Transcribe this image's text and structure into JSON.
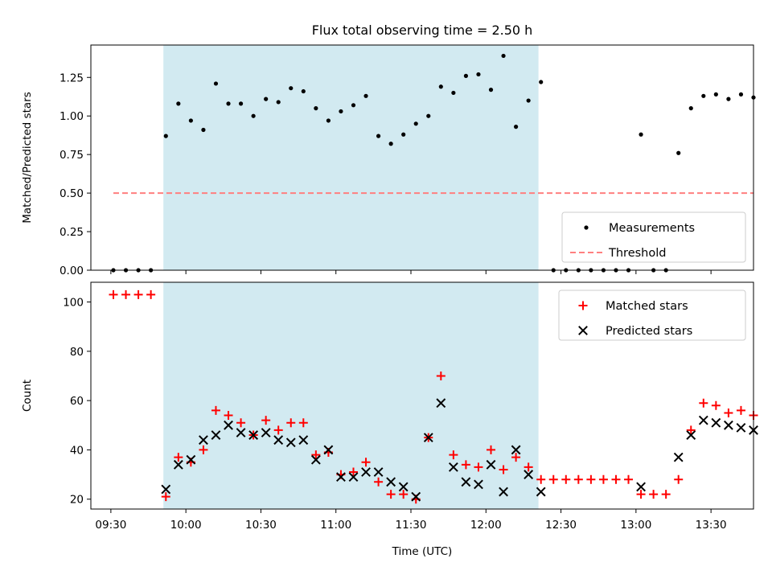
{
  "colors": {
    "shade": "#add8e6",
    "threshold": "#ff7f7f",
    "matched": "#ff0000",
    "predicted": "#000000",
    "measurement": "#000000"
  },
  "chart_data": [
    {
      "type": "scatter",
      "title": "Flux total observing time = 2.50 h",
      "xlabel": "",
      "ylabel": "Matched/Predicted stars",
      "xlim": [
        "09:22",
        "13:47"
      ],
      "ylim": [
        0,
        1.46
      ],
      "x_ticks": [
        "09:30",
        "10:00",
        "10:30",
        "11:00",
        "11:30",
        "12:00",
        "12:30",
        "13:00",
        "13:30"
      ],
      "x_tick_labels_shown": false,
      "y_ticks": [
        "0.00",
        "0.25",
        "0.50",
        "0.75",
        "1.00",
        "1.25"
      ],
      "shaded_interval": [
        "09:51",
        "12:21"
      ],
      "legend_position": "bottom-right",
      "series": [
        {
          "name": "Measurements",
          "marker": "dot",
          "points": [
            [
              "09:31",
              0
            ],
            [
              "09:36",
              0
            ],
            [
              "09:41",
              0
            ],
            [
              "09:46",
              0
            ],
            [
              "09:52",
              0.87
            ],
            [
              "09:57",
              1.08
            ],
            [
              "10:02",
              0.97
            ],
            [
              "10:07",
              0.91
            ],
            [
              "10:12",
              1.21
            ],
            [
              "10:17",
              1.08
            ],
            [
              "10:22",
              1.08
            ],
            [
              "10:27",
              1.0
            ],
            [
              "10:32",
              1.11
            ],
            [
              "10:37",
              1.09
            ],
            [
              "10:42",
              1.18
            ],
            [
              "10:47",
              1.16
            ],
            [
              "10:52",
              1.05
            ],
            [
              "10:57",
              0.97
            ],
            [
              "11:02",
              1.03
            ],
            [
              "11:07",
              1.07
            ],
            [
              "11:12",
              1.13
            ],
            [
              "11:17",
              0.87
            ],
            [
              "11:22",
              0.82
            ],
            [
              "11:27",
              0.88
            ],
            [
              "11:32",
              0.95
            ],
            [
              "11:37",
              1.0
            ],
            [
              "11:42",
              1.19
            ],
            [
              "11:47",
              1.15
            ],
            [
              "11:52",
              1.26
            ],
            [
              "11:57",
              1.27
            ],
            [
              "12:02",
              1.17
            ],
            [
              "12:07",
              1.39
            ],
            [
              "12:12",
              0.93
            ],
            [
              "12:17",
              1.1
            ],
            [
              "12:22",
              1.22
            ],
            [
              "12:27",
              0
            ],
            [
              "12:32",
              0
            ],
            [
              "12:37",
              0
            ],
            [
              "12:42",
              0
            ],
            [
              "12:47",
              0
            ],
            [
              "12:52",
              0
            ],
            [
              "12:57",
              0
            ],
            [
              "13:02",
              0.88
            ],
            [
              "13:07",
              0
            ],
            [
              "13:12",
              0
            ],
            [
              "13:17",
              0.76
            ],
            [
              "13:22",
              1.05
            ],
            [
              "13:27",
              1.13
            ],
            [
              "13:32",
              1.14
            ],
            [
              "13:37",
              1.11
            ],
            [
              "13:42",
              1.14
            ],
            [
              "13:47",
              1.12
            ]
          ]
        },
        {
          "name": "Threshold",
          "line_style": "dashed",
          "points": [
            [
              "09:31",
              0.5
            ],
            [
              "13:47",
              0.5
            ]
          ]
        }
      ]
    },
    {
      "type": "scatter",
      "title": "",
      "xlabel": "Time (UTC)",
      "ylabel": "Count",
      "xlim": [
        "09:22",
        "13:47"
      ],
      "ylim": [
        16,
        108
      ],
      "x_ticks": [
        "09:30",
        "10:00",
        "10:30",
        "11:00",
        "11:30",
        "12:00",
        "12:30",
        "13:00",
        "13:30"
      ],
      "y_ticks": [
        "20",
        "40",
        "60",
        "80",
        "100"
      ],
      "shaded_interval": [
        "09:51",
        "12:21"
      ],
      "legend_position": "top-right",
      "series": [
        {
          "name": "Matched stars",
          "marker": "plus",
          "points": [
            [
              "09:31",
              103
            ],
            [
              "09:36",
              103
            ],
            [
              "09:41",
              103
            ],
            [
              "09:46",
              103
            ],
            [
              "09:52",
              21
            ],
            [
              "09:57",
              37
            ],
            [
              "10:02",
              35
            ],
            [
              "10:07",
              40
            ],
            [
              "10:12",
              56
            ],
            [
              "10:17",
              54
            ],
            [
              "10:22",
              51
            ],
            [
              "10:27",
              46
            ],
            [
              "10:32",
              52
            ],
            [
              "10:37",
              48
            ],
            [
              "10:42",
              51
            ],
            [
              "10:47",
              51
            ],
            [
              "10:52",
              38
            ],
            [
              "10:57",
              39
            ],
            [
              "11:02",
              30
            ],
            [
              "11:07",
              31
            ],
            [
              "11:12",
              35
            ],
            [
              "11:17",
              27
            ],
            [
              "11:22",
              22
            ],
            [
              "11:27",
              22
            ],
            [
              "11:32",
              20
            ],
            [
              "11:37",
              45
            ],
            [
              "11:42",
              70
            ],
            [
              "11:47",
              38
            ],
            [
              "11:52",
              34
            ],
            [
              "11:57",
              33
            ],
            [
              "12:02",
              40
            ],
            [
              "12:07",
              32
            ],
            [
              "12:12",
              37
            ],
            [
              "12:17",
              33
            ],
            [
              "12:22",
              28
            ],
            [
              "12:27",
              28
            ],
            [
              "12:32",
              28
            ],
            [
              "12:37",
              28
            ],
            [
              "12:42",
              28
            ],
            [
              "12:47",
              28
            ],
            [
              "12:52",
              28
            ],
            [
              "12:57",
              28
            ],
            [
              "13:02",
              22
            ],
            [
              "13:07",
              22
            ],
            [
              "13:12",
              22
            ],
            [
              "13:17",
              28
            ],
            [
              "13:22",
              48
            ],
            [
              "13:27",
              59
            ],
            [
              "13:32",
              58
            ],
            [
              "13:37",
              55
            ],
            [
              "13:42",
              56
            ],
            [
              "13:47",
              54
            ]
          ]
        },
        {
          "name": "Predicted stars",
          "marker": "x",
          "points": [
            [
              "09:52",
              24
            ],
            [
              "09:57",
              34
            ],
            [
              "10:02",
              36
            ],
            [
              "10:07",
              44
            ],
            [
              "10:12",
              46
            ],
            [
              "10:17",
              50
            ],
            [
              "10:22",
              47
            ],
            [
              "10:27",
              46
            ],
            [
              "10:32",
              47
            ],
            [
              "10:37",
              44
            ],
            [
              "10:42",
              43
            ],
            [
              "10:47",
              44
            ],
            [
              "10:52",
              36
            ],
            [
              "10:57",
              40
            ],
            [
              "11:02",
              29
            ],
            [
              "11:07",
              29
            ],
            [
              "11:12",
              31
            ],
            [
              "11:17",
              31
            ],
            [
              "11:22",
              27
            ],
            [
              "11:27",
              25
            ],
            [
              "11:32",
              21
            ],
            [
              "11:37",
              45
            ],
            [
              "11:42",
              59
            ],
            [
              "11:47",
              33
            ],
            [
              "11:52",
              27
            ],
            [
              "11:57",
              26
            ],
            [
              "12:02",
              34
            ],
            [
              "12:07",
              23
            ],
            [
              "12:12",
              40
            ],
            [
              "12:17",
              30
            ],
            [
              "12:22",
              23
            ],
            [
              "13:02",
              25
            ],
            [
              "13:17",
              37
            ],
            [
              "13:22",
              46
            ],
            [
              "13:27",
              52
            ],
            [
              "13:32",
              51
            ],
            [
              "13:37",
              50
            ],
            [
              "13:42",
              49
            ],
            [
              "13:47",
              48
            ]
          ]
        }
      ]
    }
  ]
}
